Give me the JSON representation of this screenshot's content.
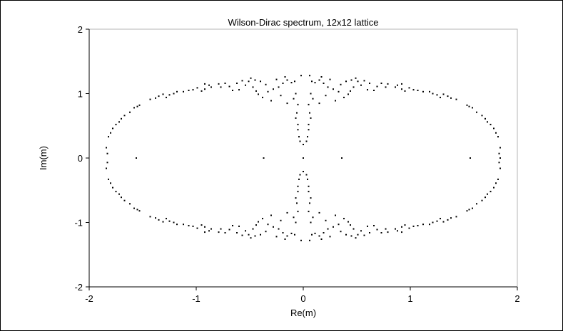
{
  "chart_data": {
    "type": "scatter",
    "title": "Wilson-Dirac spectrum, 12x12 lattice",
    "xlabel": "Re(m)",
    "ylabel": "Im(m)",
    "xlim": [
      -2,
      2
    ],
    "ylim": [
      -2,
      2
    ],
    "xticks": [
      "-2",
      "-1",
      "0",
      "1",
      "2"
    ],
    "yticks": [
      "-2",
      "-1",
      "0",
      "1",
      "2"
    ],
    "xtick_values": [
      -2,
      -1,
      0,
      1,
      2
    ],
    "ytick_values": [
      -2,
      -1,
      0,
      1,
      2
    ],
    "grid": false,
    "legend": "none",
    "marker_color": "#000000",
    "series": [
      {
        "points": [
          [
            -1.84,
            0.16
          ],
          [
            -1.83,
            0.07
          ],
          [
            -1.84,
            -0.16
          ],
          [
            -1.83,
            -0.07
          ],
          [
            -1.82,
            0.33
          ],
          [
            -1.8,
            0.39
          ],
          [
            -1.82,
            -0.33
          ],
          [
            -1.8,
            -0.39
          ],
          [
            -1.78,
            0.46
          ],
          [
            -1.75,
            0.52
          ],
          [
            -1.78,
            -0.46
          ],
          [
            -1.75,
            -0.52
          ],
          [
            -1.72,
            0.56
          ],
          [
            -1.7,
            0.61
          ],
          [
            -1.72,
            -0.56
          ],
          [
            -1.7,
            -0.61
          ],
          [
            -1.67,
            0.66
          ],
          [
            -1.62,
            0.71
          ],
          [
            -1.67,
            -0.66
          ],
          [
            -1.62,
            -0.71
          ],
          [
            -1.58,
            0.78
          ],
          [
            -1.55,
            0.8
          ],
          [
            -1.58,
            -0.78
          ],
          [
            -1.55,
            -0.8
          ],
          [
            -1.53,
            0.82
          ],
          [
            -1.53,
            -0.82
          ],
          [
            -1.43,
            0.91
          ],
          [
            -1.38,
            0.93
          ],
          [
            -1.43,
            -0.91
          ],
          [
            -1.38,
            -0.93
          ],
          [
            -1.35,
            0.96
          ],
          [
            -1.31,
            0.99
          ],
          [
            -1.35,
            -0.96
          ],
          [
            -1.31,
            -0.99
          ],
          [
            -1.28,
            0.94
          ],
          [
            -1.25,
            0.98
          ],
          [
            -1.28,
            -0.94
          ],
          [
            -1.25,
            -0.98
          ],
          [
            -1.21,
            1.0
          ],
          [
            -1.18,
            1.03
          ],
          [
            -1.21,
            -1.0
          ],
          [
            -1.18,
            -1.03
          ],
          [
            -1.12,
            1.03
          ],
          [
            -1.07,
            1.05
          ],
          [
            -1.12,
            -1.03
          ],
          [
            -1.07,
            -1.05
          ],
          [
            -1.03,
            1.06
          ],
          [
            -0.99,
            1.09
          ],
          [
            -1.03,
            -1.06
          ],
          [
            -0.99,
            -1.09
          ],
          [
            -0.95,
            1.04
          ],
          [
            -0.92,
            1.07
          ],
          [
            -0.95,
            -1.04
          ],
          [
            -0.92,
            -1.07
          ],
          [
            -0.92,
            1.15
          ],
          [
            -0.88,
            1.13
          ],
          [
            -0.92,
            -1.15
          ],
          [
            -0.88,
            -1.13
          ],
          [
            -0.86,
            1.1
          ],
          [
            -0.86,
            -1.1
          ],
          [
            -0.79,
            1.15
          ],
          [
            -0.77,
            1.1
          ],
          [
            -0.79,
            -1.15
          ],
          [
            -0.77,
            -1.1
          ],
          [
            -0.73,
            1.16
          ],
          [
            -0.69,
            1.11
          ],
          [
            -0.73,
            -1.16
          ],
          [
            -0.69,
            -1.11
          ],
          [
            -0.66,
            1.05
          ],
          [
            -0.62,
            1.16
          ],
          [
            -0.66,
            -1.05
          ],
          [
            -0.62,
            -1.16
          ],
          [
            -0.6,
            1.06
          ],
          [
            -0.57,
            1.2
          ],
          [
            -0.6,
            -1.06
          ],
          [
            -0.57,
            -1.2
          ],
          [
            -0.54,
            1.13
          ],
          [
            -0.51,
            1.19
          ],
          [
            -0.54,
            -1.13
          ],
          [
            -0.51,
            -1.19
          ],
          [
            -0.49,
            1.24
          ],
          [
            -0.47,
            1.1
          ],
          [
            -0.49,
            -1.24
          ],
          [
            -0.47,
            -1.1
          ],
          [
            -0.45,
            1.21
          ],
          [
            -0.44,
            1.04
          ],
          [
            -0.45,
            -1.21
          ],
          [
            -0.44,
            -1.04
          ],
          [
            -0.42,
            0.99
          ],
          [
            -0.4,
            1.19
          ],
          [
            -0.42,
            -0.99
          ],
          [
            -0.4,
            -1.19
          ],
          [
            -0.38,
            0.94
          ],
          [
            -0.35,
            1.14
          ],
          [
            -0.38,
            -0.94
          ],
          [
            -0.35,
            -1.14
          ],
          [
            -0.33,
            1.03
          ],
          [
            -0.3,
            0.89
          ],
          [
            -0.33,
            -1.03
          ],
          [
            -0.3,
            -0.89
          ],
          [
            -0.28,
            1.07
          ],
          [
            -0.25,
            1.22
          ],
          [
            -0.28,
            -1.07
          ],
          [
            -0.25,
            -1.22
          ],
          [
            -0.23,
            1.1
          ],
          [
            -0.21,
            0.97
          ],
          [
            -0.23,
            -1.1
          ],
          [
            -0.21,
            -0.97
          ],
          [
            -0.19,
            1.16
          ],
          [
            -0.17,
            1.26
          ],
          [
            -0.19,
            -1.16
          ],
          [
            -0.17,
            -1.26
          ],
          [
            -0.15,
            0.85
          ],
          [
            -0.15,
            1.21
          ],
          [
            -0.15,
            -0.85
          ],
          [
            -0.15,
            -1.21
          ],
          [
            -0.11,
            1.17
          ],
          [
            -0.09,
            0.92
          ],
          [
            -0.11,
            -1.17
          ],
          [
            -0.09,
            -0.92
          ],
          [
            -0.07,
            1.0
          ],
          [
            -0.05,
            0.83
          ],
          [
            -0.07,
            -1.0
          ],
          [
            -0.05,
            -0.83
          ],
          [
            -0.08,
            1.19
          ],
          [
            -0.08,
            -1.19
          ],
          [
            -0.02,
            1.28
          ],
          [
            -0.02,
            -1.28
          ],
          [
            -0.06,
            0.7
          ],
          [
            -0.07,
            0.62
          ],
          [
            -0.06,
            -0.7
          ],
          [
            -0.07,
            -0.62
          ],
          [
            -0.05,
            0.52
          ],
          [
            -0.05,
            0.44
          ],
          [
            -0.05,
            -0.52
          ],
          [
            -0.05,
            -0.44
          ],
          [
            -0.04,
            0.33
          ],
          [
            -0.03,
            0.26
          ],
          [
            -0.04,
            -0.33
          ],
          [
            -0.03,
            -0.26
          ],
          [
            0.0,
            0.21
          ],
          [
            0.0,
            -0.21
          ],
          [
            -1.56,
            0.0
          ],
          [
            -0.37,
            0.0
          ],
          [
            0.0,
            0.0
          ],
          [
            0.36,
            0.0
          ],
          [
            1.56,
            0.0
          ],
          [
            1.84,
            0.0
          ],
          [
            1.84,
            0.16
          ],
          [
            1.83,
            0.07
          ],
          [
            1.84,
            -0.16
          ],
          [
            1.83,
            -0.07
          ],
          [
            1.82,
            0.33
          ],
          [
            1.8,
            0.39
          ],
          [
            1.82,
            -0.33
          ],
          [
            1.8,
            -0.39
          ],
          [
            1.78,
            0.46
          ],
          [
            1.75,
            0.52
          ],
          [
            1.78,
            -0.46
          ],
          [
            1.75,
            -0.52
          ],
          [
            1.72,
            0.56
          ],
          [
            1.7,
            0.61
          ],
          [
            1.72,
            -0.56
          ],
          [
            1.7,
            -0.61
          ],
          [
            1.67,
            0.66
          ],
          [
            1.62,
            0.71
          ],
          [
            1.67,
            -0.66
          ],
          [
            1.62,
            -0.71
          ],
          [
            1.58,
            0.78
          ],
          [
            1.55,
            0.8
          ],
          [
            1.58,
            -0.78
          ],
          [
            1.55,
            -0.8
          ],
          [
            1.53,
            0.82
          ],
          [
            1.53,
            -0.82
          ],
          [
            1.43,
            0.91
          ],
          [
            1.38,
            0.93
          ],
          [
            1.43,
            -0.91
          ],
          [
            1.38,
            -0.93
          ],
          [
            1.35,
            0.96
          ],
          [
            1.31,
            0.99
          ],
          [
            1.35,
            -0.96
          ],
          [
            1.31,
            -0.99
          ],
          [
            1.28,
            0.94
          ],
          [
            1.25,
            0.98
          ],
          [
            1.28,
            -0.94
          ],
          [
            1.25,
            -0.98
          ],
          [
            1.21,
            1.0
          ],
          [
            1.18,
            1.03
          ],
          [
            1.21,
            -1.0
          ],
          [
            1.18,
            -1.03
          ],
          [
            1.12,
            1.03
          ],
          [
            1.07,
            1.05
          ],
          [
            1.12,
            -1.03
          ],
          [
            1.07,
            -1.05
          ],
          [
            1.03,
            1.06
          ],
          [
            0.99,
            1.09
          ],
          [
            1.03,
            -1.06
          ],
          [
            0.99,
            -1.09
          ],
          [
            0.95,
            1.04
          ],
          [
            0.92,
            1.07
          ],
          [
            0.95,
            -1.04
          ],
          [
            0.92,
            -1.07
          ],
          [
            0.92,
            1.15
          ],
          [
            0.88,
            1.13
          ],
          [
            0.92,
            -1.15
          ],
          [
            0.88,
            -1.13
          ],
          [
            0.86,
            1.1
          ],
          [
            0.86,
            -1.1
          ],
          [
            0.79,
            1.15
          ],
          [
            0.77,
            1.1
          ],
          [
            0.79,
            -1.15
          ],
          [
            0.77,
            -1.1
          ],
          [
            0.73,
            1.16
          ],
          [
            0.69,
            1.11
          ],
          [
            0.73,
            -1.16
          ],
          [
            0.69,
            -1.11
          ],
          [
            0.66,
            1.05
          ],
          [
            0.62,
            1.16
          ],
          [
            0.66,
            -1.05
          ],
          [
            0.62,
            -1.16
          ],
          [
            0.6,
            1.06
          ],
          [
            0.57,
            1.2
          ],
          [
            0.6,
            -1.06
          ],
          [
            0.57,
            -1.2
          ],
          [
            0.54,
            1.13
          ],
          [
            0.51,
            1.19
          ],
          [
            0.54,
            -1.13
          ],
          [
            0.51,
            -1.19
          ],
          [
            0.49,
            1.24
          ],
          [
            0.47,
            1.1
          ],
          [
            0.49,
            -1.24
          ],
          [
            0.47,
            -1.1
          ],
          [
            0.45,
            1.21
          ],
          [
            0.44,
            1.04
          ],
          [
            0.45,
            -1.21
          ],
          [
            0.44,
            -1.04
          ],
          [
            0.42,
            0.99
          ],
          [
            0.4,
            1.19
          ],
          [
            0.42,
            -0.99
          ],
          [
            0.4,
            -1.19
          ],
          [
            0.38,
            0.94
          ],
          [
            0.35,
            1.14
          ],
          [
            0.38,
            -0.94
          ],
          [
            0.35,
            -1.14
          ],
          [
            0.33,
            1.03
          ],
          [
            0.3,
            0.89
          ],
          [
            0.33,
            -1.03
          ],
          [
            0.3,
            -0.89
          ],
          [
            0.28,
            1.07
          ],
          [
            0.25,
            1.22
          ],
          [
            0.28,
            -1.07
          ],
          [
            0.25,
            -1.22
          ],
          [
            0.23,
            1.1
          ],
          [
            0.21,
            0.97
          ],
          [
            0.23,
            -1.1
          ],
          [
            0.21,
            -0.97
          ],
          [
            0.19,
            1.16
          ],
          [
            0.17,
            1.26
          ],
          [
            0.19,
            -1.16
          ],
          [
            0.17,
            -1.26
          ],
          [
            0.15,
            0.85
          ],
          [
            0.15,
            1.21
          ],
          [
            0.15,
            -0.85
          ],
          [
            0.15,
            -1.21
          ],
          [
            0.11,
            1.17
          ],
          [
            0.09,
            0.92
          ],
          [
            0.11,
            -1.17
          ],
          [
            0.09,
            -0.92
          ],
          [
            0.07,
            1.0
          ],
          [
            0.05,
            0.83
          ],
          [
            0.07,
            -1.0
          ],
          [
            0.05,
            -0.83
          ],
          [
            0.08,
            1.19
          ],
          [
            0.08,
            -1.19
          ],
          [
            0.06,
            1.28
          ],
          [
            0.06,
            -1.28
          ],
          [
            0.06,
            0.7
          ],
          [
            0.07,
            0.62
          ],
          [
            0.06,
            -0.7
          ],
          [
            0.07,
            -0.62
          ],
          [
            0.05,
            0.52
          ],
          [
            0.05,
            0.44
          ],
          [
            0.05,
            -0.52
          ],
          [
            0.05,
            -0.44
          ],
          [
            0.04,
            0.33
          ],
          [
            0.03,
            0.26
          ],
          [
            0.04,
            -0.33
          ],
          [
            0.03,
            -0.26
          ]
        ]
      }
    ]
  }
}
